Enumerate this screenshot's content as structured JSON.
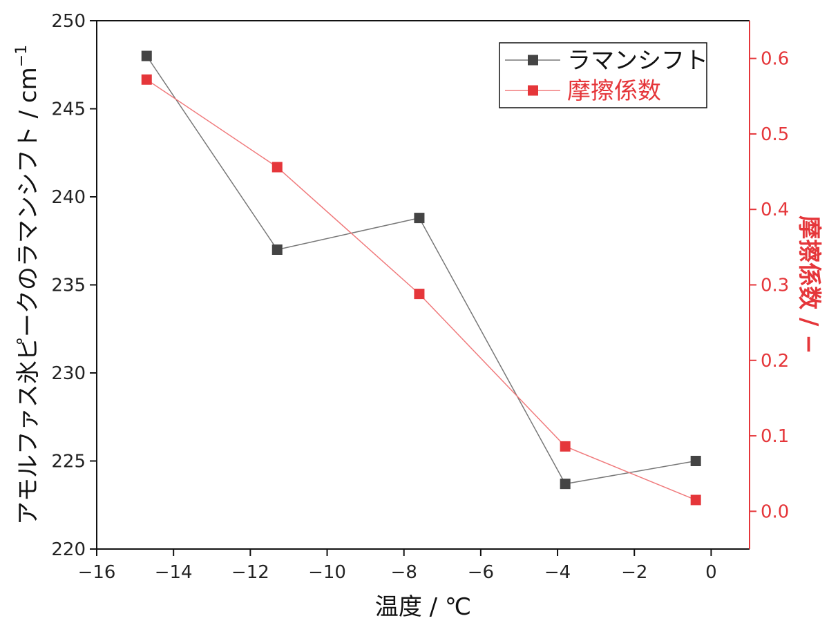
{
  "chart_data": {
    "type": "line",
    "x": [
      -14.7,
      -11.3,
      -7.6,
      -3.8,
      -0.4
    ],
    "xlabel": "温度 / ℃",
    "xlim": [
      -16,
      1
    ],
    "xticks": [
      -16,
      -14,
      -12,
      -10,
      -8,
      -6,
      -4,
      -2,
      0
    ],
    "xtick_labels": [
      "−16",
      "−14",
      "−12",
      "−10",
      "−8",
      "−6",
      "−4",
      "−2",
      "0"
    ],
    "ylabel_left_main": "アモルファス氷ピークのラマンシフト / cm",
    "ylabel_left_sup": "−1",
    "ylim_left": [
      220,
      250
    ],
    "yticks_left": [
      220,
      225,
      230,
      235,
      240,
      245,
      250
    ],
    "ylabel_right": "摩擦係数 / −",
    "ylim_right": [
      -0.05,
      0.65
    ],
    "yticks_right": [
      "0.0",
      "0.1",
      "0.2",
      "0.3",
      "0.4",
      "0.5",
      "0.6"
    ],
    "series": [
      {
        "name": "ラマンシフト",
        "axis": "left",
        "color": "#444444",
        "values": [
          248.0,
          237.0,
          238.8,
          223.7,
          225.0
        ]
      },
      {
        "name": "摩擦係数",
        "axis": "right",
        "color": "#e5363a",
        "values": [
          0.572,
          0.456,
          0.288,
          0.086,
          0.015
        ]
      }
    ],
    "legend_position": "top-right",
    "grid": false
  }
}
